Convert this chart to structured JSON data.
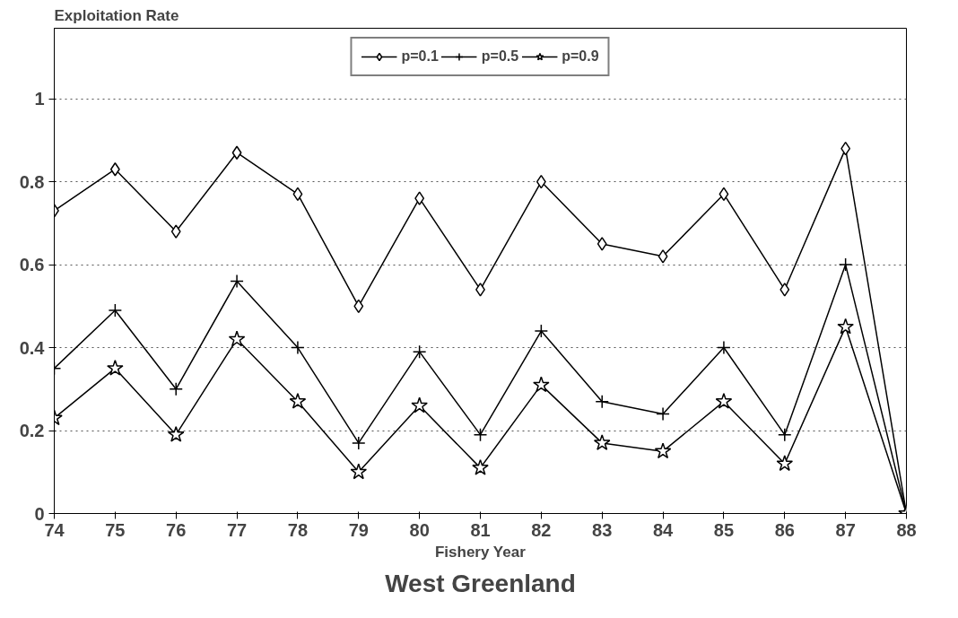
{
  "chart_data": {
    "type": "line",
    "title": "West Greenland",
    "xlabel": "Fishery Year",
    "ylabel": "Exploitation Rate",
    "x": [
      74,
      75,
      76,
      77,
      78,
      79,
      80,
      81,
      82,
      83,
      84,
      85,
      86,
      87,
      88
    ],
    "series": [
      {
        "name": "p=0.1",
        "color": "#000000",
        "marker": "diamond",
        "values": [
          0.73,
          0.83,
          0.68,
          0.87,
          0.77,
          0.5,
          0.76,
          0.54,
          0.8,
          0.65,
          0.62,
          0.77,
          0.54,
          0.88,
          0
        ]
      },
      {
        "name": "p=0.5",
        "color": "#000000",
        "marker": "cross",
        "values": [
          0.35,
          0.49,
          0.3,
          0.56,
          0.4,
          0.17,
          0.39,
          0.19,
          0.44,
          0.27,
          0.24,
          0.4,
          0.19,
          0.6,
          0
        ]
      },
      {
        "name": "p=0.9",
        "color": "#000000",
        "marker": "star",
        "values": [
          0.23,
          0.35,
          0.19,
          0.42,
          0.27,
          0.1,
          0.26,
          0.11,
          0.31,
          0.17,
          0.15,
          0.27,
          0.12,
          0.45,
          0
        ]
      }
    ],
    "xlim": [
      74,
      88
    ],
    "ylim": [
      0,
      1.17
    ],
    "xticks": [
      74,
      75,
      76,
      77,
      78,
      79,
      80,
      81,
      82,
      83,
      84,
      85,
      86,
      87,
      88
    ],
    "yticks": [
      0,
      0.2,
      0.4,
      0.6,
      0.8,
      1
    ],
    "grid": "y",
    "legend": "top",
    "line_style": "solid"
  }
}
